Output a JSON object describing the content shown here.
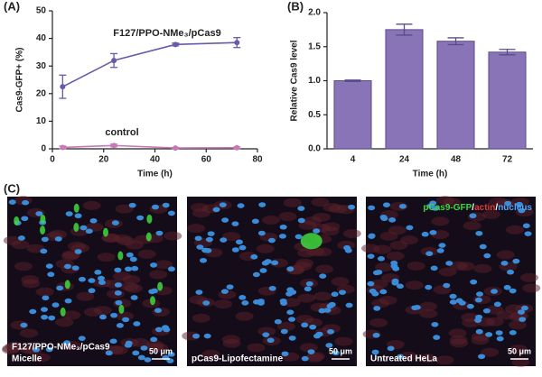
{
  "chart_data": [
    {
      "type": "line",
      "panel": "(A)",
      "xlabel": "Time (h)",
      "ylabel": "Cas9-GFP+ (%)",
      "xlim": [
        0,
        80
      ],
      "xticks": [
        0,
        20,
        40,
        60,
        80
      ],
      "ylim": [
        0,
        50
      ],
      "yticks": [
        0,
        10,
        20,
        30,
        40,
        50
      ],
      "series": [
        {
          "name": "F127/PPO-NMe₃/pCas9",
          "color": "#6a58a8",
          "x": [
            4,
            24,
            48,
            72
          ],
          "values": [
            22.5,
            32,
            37.8,
            38.5
          ],
          "errors": [
            4.2,
            2.5,
            0.5,
            1.8
          ]
        },
        {
          "name": "control",
          "color": "#c878b8",
          "x": [
            4,
            24,
            48,
            72
          ],
          "values": [
            0.5,
            1.2,
            0.3,
            0.4
          ],
          "errors": [
            0.5,
            0.5,
            0.2,
            0.3
          ]
        }
      ]
    },
    {
      "type": "bar",
      "panel": "(B)",
      "xlabel": "Time (h)",
      "ylabel": "Relative Cas9 level",
      "categories": [
        "4",
        "24",
        "48",
        "72"
      ],
      "values": [
        1.0,
        1.75,
        1.58,
        1.42
      ],
      "errors": [
        0.01,
        0.08,
        0.05,
        0.04
      ],
      "color": "#8a74b8",
      "ylim": [
        0,
        2
      ],
      "yticks": [
        {
          "value": 0,
          "label": "0.0"
        },
        {
          "value": 0.5,
          "label": "0.5"
        },
        {
          "value": 1,
          "label": "1.0"
        },
        {
          "value": 1.5,
          "label": "1.5"
        },
        {
          "value": 2,
          "label": "2.0"
        }
      ]
    }
  ],
  "micrographs": {
    "panel": "(C)",
    "images": [
      {
        "label": [
          "F127/PPO-NMe₃/pCas9",
          "Micelle"
        ],
        "scale": "50 μm"
      },
      {
        "label": [
          "pCas9-Lipofectamine"
        ],
        "scale": "50 μm"
      },
      {
        "label": [
          "Untreated HeLa"
        ],
        "scale": "50 μm"
      }
    ],
    "legend": [
      {
        "text": "pCas9-GFP",
        "color": "#3ed83e"
      },
      {
        "text": "/",
        "color": "#ffffff"
      },
      {
        "text": "actin",
        "color": "#e03a3a"
      },
      {
        "text": "/",
        "color": "#ffffff"
      },
      {
        "text": "nucleus",
        "color": "#48a8ff"
      }
    ]
  }
}
